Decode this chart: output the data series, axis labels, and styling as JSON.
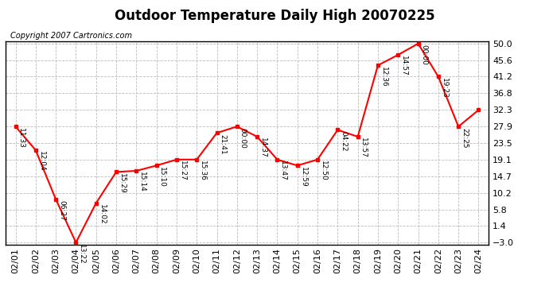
{
  "title": "Outdoor Temperature Daily High 20070225",
  "copyright": "Copyright 2007 Cartronics.com",
  "x_labels": [
    "02/01",
    "02/02",
    "02/03",
    "02/04",
    "02/05",
    "02/06",
    "02/07",
    "02/08",
    "02/09",
    "02/10",
    "02/11",
    "02/12",
    "02/13",
    "02/14",
    "02/15",
    "02/16",
    "02/17",
    "02/18",
    "02/19",
    "02/20",
    "02/21",
    "02/22",
    "02/23",
    "02/24"
  ],
  "x_values": [
    0,
    1,
    2,
    3,
    4,
    5,
    6,
    7,
    8,
    9,
    10,
    11,
    12,
    13,
    14,
    15,
    16,
    17,
    18,
    19,
    20,
    21,
    22,
    23
  ],
  "y_values": [
    27.9,
    21.6,
    8.5,
    -3.0,
    7.5,
    15.8,
    16.1,
    17.5,
    19.1,
    19.1,
    26.2,
    27.9,
    25.2,
    19.1,
    17.5,
    19.1,
    27.0,
    25.2,
    44.2,
    47.0,
    50.0,
    41.2,
    27.9,
    32.3
  ],
  "time_labels": [
    "11:33",
    "12:04",
    "06:27",
    "13:22",
    "14:02",
    "15:29",
    "15:14",
    "15:10",
    "15:27",
    "15:36",
    "21:41",
    "00:00",
    "14:37",
    "13:47",
    "12:59",
    "12:50",
    "04:22",
    "13:57",
    "12:36",
    "14:57",
    "00:00",
    "19:23",
    "22:25",
    ""
  ],
  "ylim_min": -3.0,
  "ylim_max": 50.0,
  "yticks": [
    50.0,
    45.6,
    41.2,
    36.8,
    32.3,
    27.9,
    23.5,
    19.1,
    14.7,
    10.2,
    5.8,
    1.4,
    -3.0
  ],
  "line_color": "red",
  "marker_color": "red",
  "bg_color": "white",
  "grid_color": "#bbbbbb",
  "title_fontsize": 12,
  "tick_fontsize": 8,
  "copyright_fontsize": 7,
  "annotation_fontsize": 6.5
}
